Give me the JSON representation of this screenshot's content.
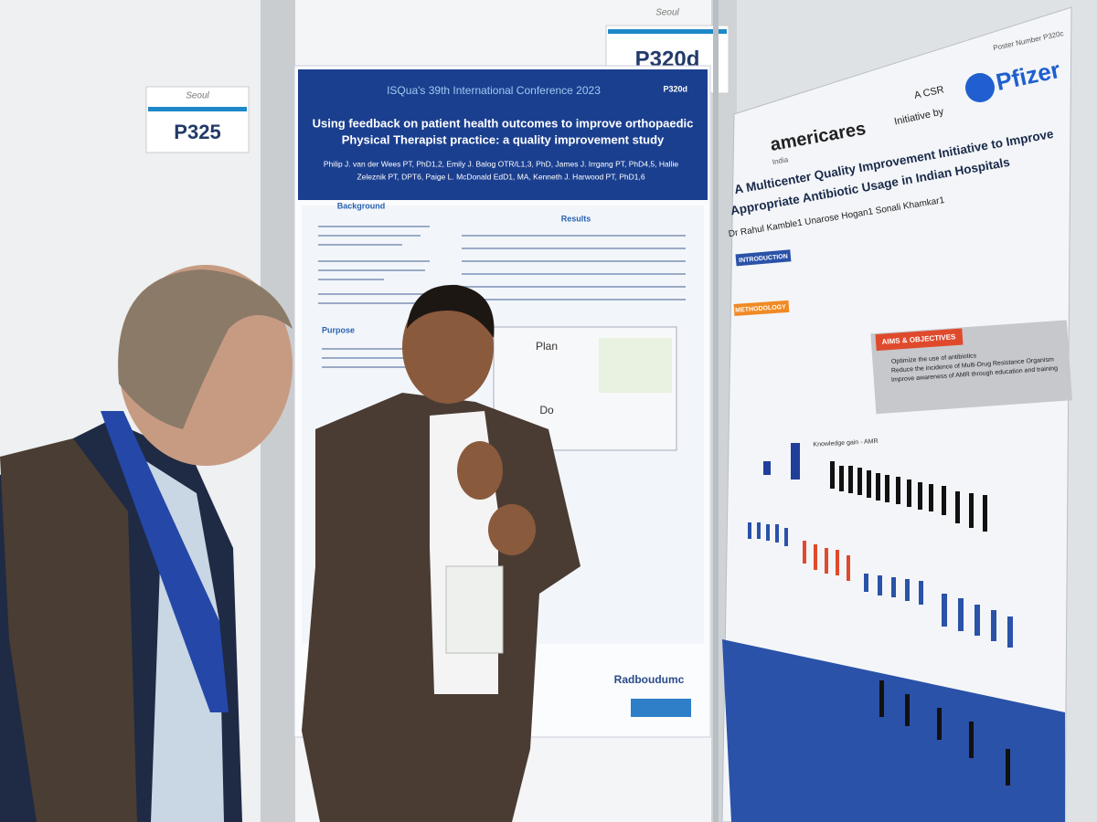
{
  "signs": [
    {
      "city": "Seoul",
      "number": "P325"
    },
    {
      "city": "Seoul",
      "number": "P320d"
    }
  ],
  "left_poster": {
    "conference": "ISQua's 39th International Conference 2023",
    "poster_id": "P320d",
    "title": [
      "Using feedback on patient health outcomes to improve orthopaedic",
      "Physical Therapist practice: a quality improvement study"
    ],
    "authors": [
      "Philip J. van der Wees PT, PhD1,2, Emily J. Balog OTR/L1,3, PhD, James J. Irrgang PT, PhD4,5, Hallie",
      "Zeleznik PT, DPT6, Paige L. McDonald EdD1, MA, Kenneth J. Harwood PT, PhD1,6"
    ],
    "sections": [
      "Background",
      "Results",
      "Purpose"
    ],
    "cycle": [
      "Plan",
      "Do"
    ],
    "institution": "Radboudumc"
  },
  "right_poster": {
    "poster_number": "Poster Number P320c",
    "csr": [
      "A CSR",
      "Initiative by"
    ],
    "sponsor": "Pfizer",
    "organization": "americares",
    "country": "India",
    "title": [
      "A Multicenter Quality Improvement Initiative to Improve",
      "Appropriate Antibiotic Usage in Indian Hospitals"
    ],
    "authors": "Dr Rahul Kamble1 Unarose Hogan1 Sonali Khamkar1",
    "headings": [
      "INTRODUCTION",
      "METHODOLOGY",
      "AIMS & OBJECTIVES"
    ],
    "objectives": [
      "Optimize the use of antibiotics",
      "Reduce the incidence of Multi-Drug Resistance Organism",
      "Improve awareness of AMR through education and training"
    ],
    "chart_title": "Knowledge gain - AMR"
  }
}
